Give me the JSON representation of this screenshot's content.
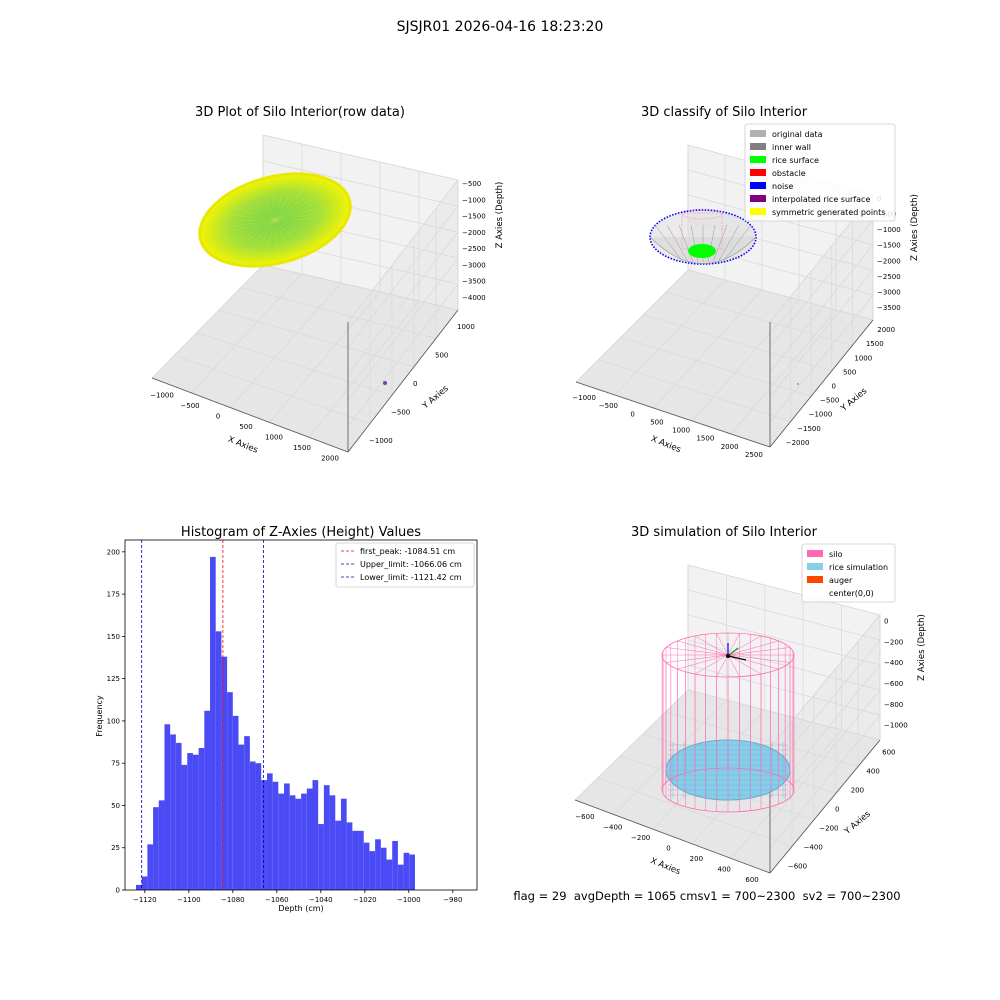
{
  "suptitle": "SJSJR01 2026-04-16 18:23:20",
  "footer_text": "flag = 29  avgDepth = 1065 cmsv1 = 700~2300  sv2 = 700~2300",
  "colors": {
    "hist_bar": "#4b4bf5",
    "peak_line": "#ff0000",
    "limit_line": "#0000cc",
    "grid": "#d8d8d8",
    "pane": "#f2f2f2"
  },
  "chart_data": [
    {
      "type": "scatter3d",
      "title": "3D Plot of Silo Interior(row data)",
      "xlabel": "X Axies",
      "ylabel": "Y Axies",
      "zlabel": "Z Axies (Depth)",
      "x_ticks": [
        "−1000",
        "−500",
        "0",
        "500",
        "1000",
        "1500",
        "2000"
      ],
      "y_ticks": [
        "−1000",
        "−500",
        "0",
        "500",
        "1000"
      ],
      "z_ticks": [
        "−500",
        "−1000",
        "−1500",
        "−2000",
        "−2500",
        "−3000",
        "−3500",
        "−4000"
      ],
      "grid": true
    },
    {
      "type": "scatter3d",
      "title": "3D classify of Silo Interior",
      "xlabel": "X Axies",
      "ylabel": "Y Axies",
      "zlabel": "Z Axies (Depth)",
      "x_ticks": [
        "−1000",
        "−500",
        "0",
        "500",
        "1000",
        "1500",
        "2000",
        "2500"
      ],
      "y_ticks": [
        "−2000",
        "−1500",
        "−1000",
        "−500",
        "0",
        "500",
        "1000",
        "1500",
        "2000"
      ],
      "z_ticks": [
        "0",
        "−500",
        "−1000",
        "−1500",
        "−2000",
        "−2500",
        "−3000",
        "−3500"
      ],
      "legend": [
        {
          "label": "original data",
          "color": "#b0b0b0"
        },
        {
          "label": "inner wall",
          "color": "#808080"
        },
        {
          "label": "rice surface",
          "color": "#00ff00"
        },
        {
          "label": "obstacle",
          "color": "#ff0000"
        },
        {
          "label": "noise",
          "color": "#0000ff"
        },
        {
          "label": "interpolated rice surface",
          "color": "#800080"
        },
        {
          "label": "symmetric generated points",
          "color": "#ffff00"
        }
      ],
      "legend_position": "top-right",
      "grid": true
    },
    {
      "type": "bar",
      "title": "Histogram of Z-Axies (Height) Values",
      "xlabel": "Depth (cm)",
      "ylabel": "Frequency",
      "bin_start": -1124,
      "bin_width": 2.588,
      "values": [
        3,
        8,
        27,
        49,
        53,
        98,
        92,
        87,
        74,
        81,
        80,
        84,
        106,
        197,
        153,
        138,
        117,
        103,
        86,
        91,
        76,
        75,
        65,
        69,
        64,
        57,
        63,
        56,
        54,
        57,
        60,
        65,
        39,
        62,
        56,
        41,
        54,
        40,
        35,
        35,
        28,
        23,
        30,
        25,
        18,
        29,
        15,
        22,
        21
      ],
      "xlim": [
        -1129,
        -969
      ],
      "ylim": [
        0,
        207
      ],
      "x_ticks": [
        -1120,
        -1100,
        -1080,
        -1060,
        -1040,
        -1020,
        -1000,
        -980
      ],
      "x_tick_labels": [
        "−1120",
        "−1100",
        "−1080",
        "−1060",
        "−1040",
        "−1020",
        "−1000",
        "−980"
      ],
      "y_ticks": [
        0,
        25,
        50,
        75,
        100,
        125,
        150,
        175,
        200
      ],
      "y_tick_labels": [
        "0",
        "25",
        "50",
        "75",
        "100",
        "125",
        "150",
        "175",
        "200"
      ],
      "vlines": [
        {
          "label": "first_peak: -1084.51 cm",
          "x": -1084.51,
          "color": "#ff0000"
        },
        {
          "label": "Upper_limit: -1066.06 cm",
          "x": -1066.06,
          "color": "#0000cc"
        },
        {
          "label": "Lower_limit: -1121.42 cm",
          "x": -1121.42,
          "color": "#0000cc"
        }
      ],
      "legend_position": "top-right",
      "grid": false
    },
    {
      "type": "scatter3d",
      "title": "3D simulation of Silo Interior",
      "xlabel": "X Axies",
      "ylabel": "Y Axies",
      "zlabel": "Z Axies (Depth)",
      "x_ticks": [
        "−600",
        "−400",
        "−200",
        "0",
        "200",
        "400",
        "600"
      ],
      "y_ticks": [
        "−600",
        "−400",
        "−200",
        "0",
        "200",
        "400",
        "600"
      ],
      "z_ticks": [
        "0",
        "−200",
        "−400",
        "−600",
        "−800",
        "−1000"
      ],
      "legend": [
        {
          "label": "silo",
          "color": "#ff69b4"
        },
        {
          "label": "rice simulation",
          "color": "#87ceeb"
        },
        {
          "label": "auger",
          "color": "#ff4500"
        },
        {
          "label": "center(0,0)",
          "color": ""
        }
      ],
      "legend_position": "top-right",
      "grid": true
    }
  ]
}
